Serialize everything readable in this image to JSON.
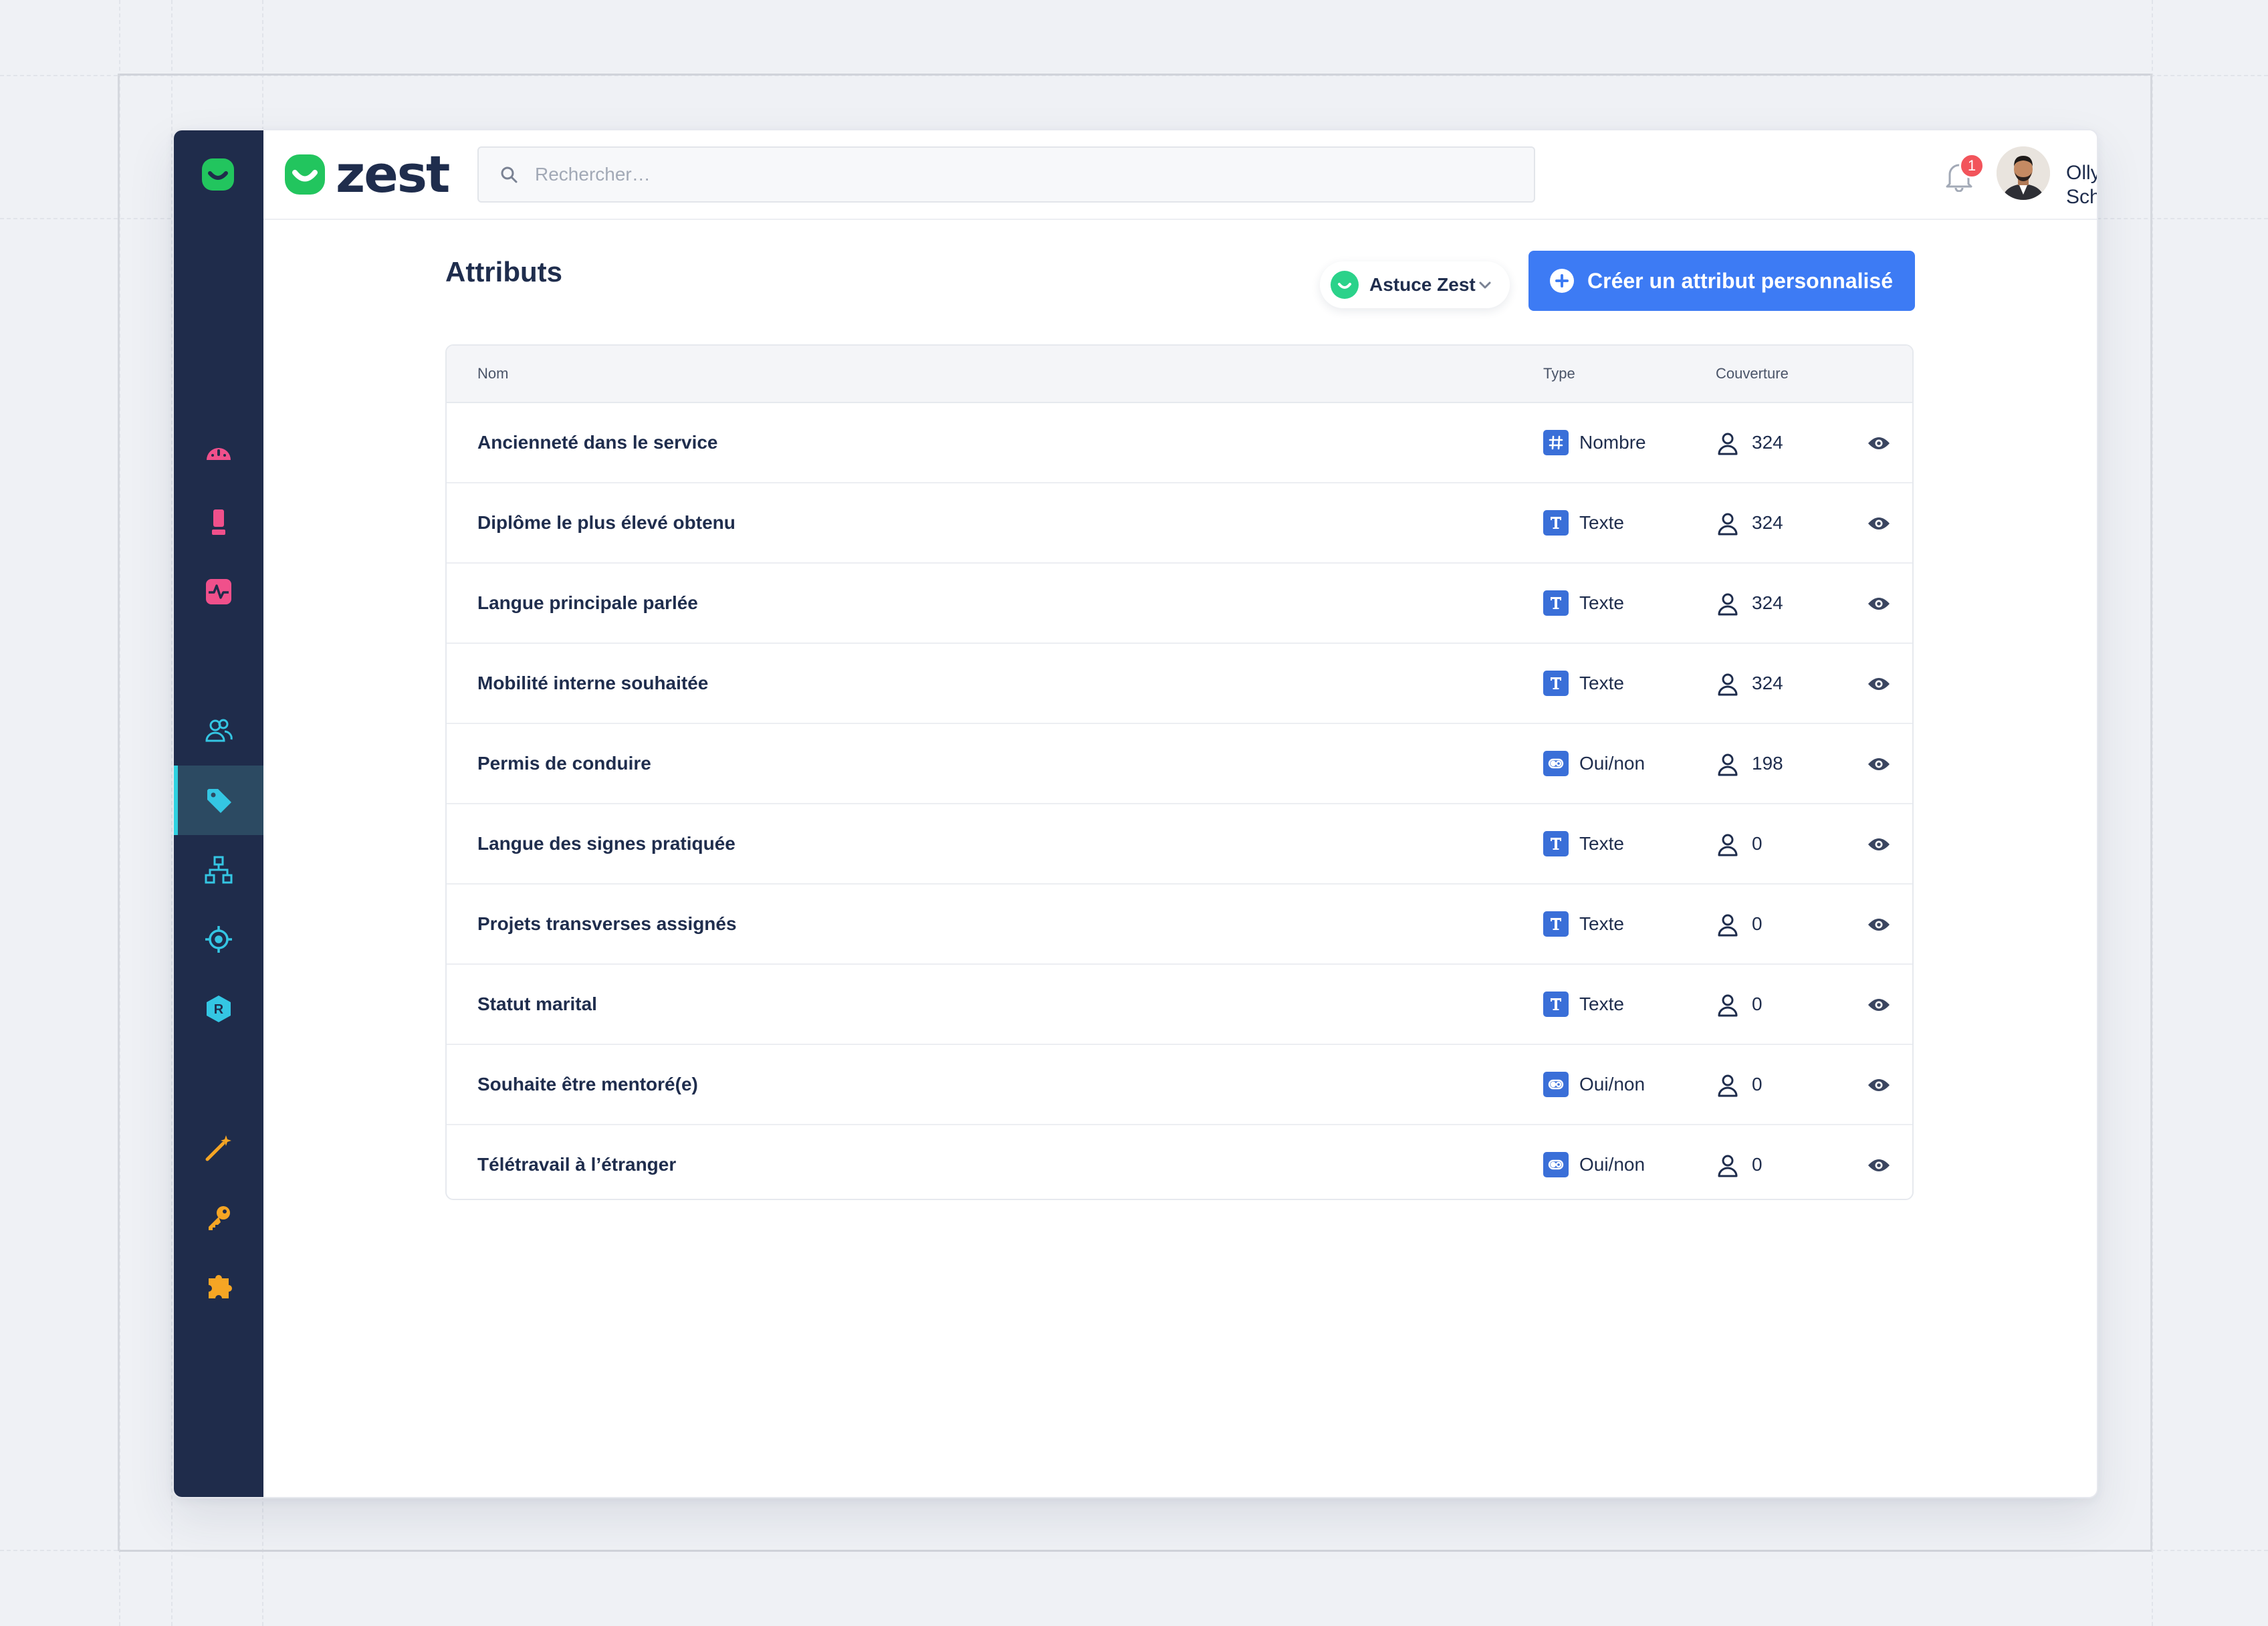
{
  "app": {
    "brand_name": "zest",
    "brand_color": "#22c55e",
    "sidebar_bg": "#1f2c4b",
    "accent": "#3d7bf4"
  },
  "sidebar": {
    "items": [
      {
        "icon": "dashboard-icon",
        "color": "#f0508b",
        "active": false
      },
      {
        "icon": "trophy-icon",
        "color": "#f0508b",
        "active": false
      },
      {
        "icon": "pulse-icon",
        "color": "#f0508b",
        "active": false
      },
      {
        "icon": "people-icon",
        "color": "#34c6e3",
        "active": false
      },
      {
        "icon": "tag-icon",
        "color": "#34c6e3",
        "active": true
      },
      {
        "icon": "org-chart-icon",
        "color": "#34c6e3",
        "active": false
      },
      {
        "icon": "target-icon",
        "color": "#34c6e3",
        "active": false
      },
      {
        "icon": "hexagon-r-icon",
        "color": "#34c6e3",
        "active": false
      },
      {
        "icon": "magic-wand-icon",
        "color": "#f5a524",
        "active": false
      },
      {
        "icon": "key-icon",
        "color": "#f5a524",
        "active": false
      },
      {
        "icon": "puzzle-icon",
        "color": "#f5a524",
        "active": false
      }
    ]
  },
  "header": {
    "search_placeholder": "Rechercher…",
    "notification_count": "1",
    "user_name": "Olly Schroeder"
  },
  "page": {
    "title": "Attributs",
    "tip_label": "Astuce Zest",
    "create_label": "Créer un attribut personnalisé"
  },
  "table": {
    "columns": {
      "name": "Nom",
      "type": "Type",
      "coverage": "Couverture"
    },
    "rows": [
      {
        "name": "Ancienneté dans le service",
        "type": "Nombre",
        "type_icon": "hash-icon",
        "coverage": "324"
      },
      {
        "name": "Diplôme le plus élevé obtenu",
        "type": "Texte",
        "type_icon": "text-t-icon",
        "coverage": "324"
      },
      {
        "name": "Langue principale parlée",
        "type": "Texte",
        "type_icon": "text-t-icon",
        "coverage": "324"
      },
      {
        "name": "Mobilité interne souhaitée",
        "type": "Texte",
        "type_icon": "text-t-icon",
        "coverage": "324"
      },
      {
        "name": "Permis de conduire",
        "type": "Oui/non",
        "type_icon": "toggle-icon",
        "coverage": "198"
      },
      {
        "name": "Langue des signes pratiquée",
        "type": "Texte",
        "type_icon": "text-t-icon",
        "coverage": "0"
      },
      {
        "name": "Projets transverses assignés",
        "type": "Texte",
        "type_icon": "text-t-icon",
        "coverage": "0"
      },
      {
        "name": "Statut marital",
        "type": "Texte",
        "type_icon": "text-t-icon",
        "coverage": "0"
      },
      {
        "name": "Souhaite être mentoré(e)",
        "type": "Oui/non",
        "type_icon": "toggle-icon",
        "coverage": "0"
      },
      {
        "name": "Télétravail à l’étranger",
        "type": "Oui/non",
        "type_icon": "toggle-icon",
        "coverage": "0"
      }
    ]
  }
}
